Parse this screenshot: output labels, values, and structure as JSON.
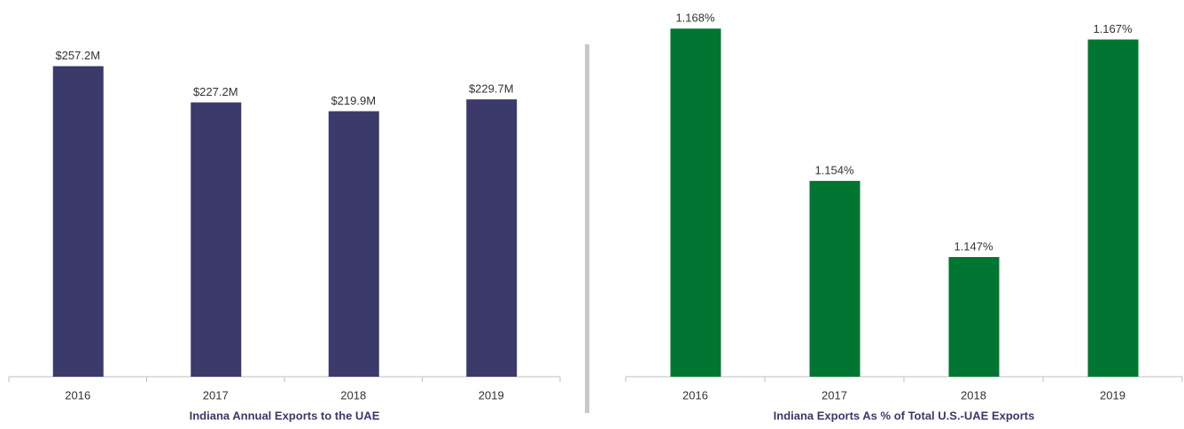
{
  "chart_data": [
    {
      "type": "bar",
      "title": "Indiana Annual Exports to the UAE",
      "categories": [
        "2016",
        "2017",
        "2018",
        "2019"
      ],
      "values": [
        257.2,
        227.2,
        219.9,
        229.7
      ],
      "value_labels": [
        "$257.2M",
        "$227.2M",
        "$219.9M",
        "$229.7M"
      ],
      "color": "#3b3a6b",
      "ylim": [
        0,
        290
      ]
    },
    {
      "type": "bar",
      "title": "Indiana Exports As % of Total U.S.-UAE  Exports",
      "categories": [
        "2016",
        "2017",
        "2018",
        "2019"
      ],
      "values": [
        1.168,
        1.154,
        1.147,
        1.167
      ],
      "value_labels": [
        "1.168%",
        "1.154%",
        "1.147%",
        "1.167%"
      ],
      "color": "#007632",
      "ylim": [
        1.136,
        1.169
      ]
    }
  ]
}
